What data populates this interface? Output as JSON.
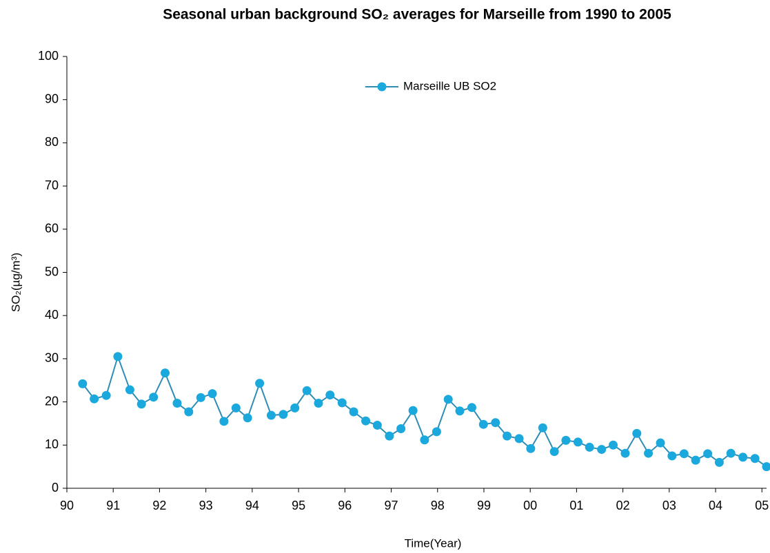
{
  "chart_data": {
    "type": "line",
    "title": "Seasonal urban background SO₂ averages for Marseille from 1990 to 2005",
    "xlabel": "Time(Year)",
    "ylabel": "SO₂(µg/m³)",
    "x": [
      1990.34,
      1990.59,
      1990.85,
      1991.1,
      1991.36,
      1991.61,
      1991.87,
      1992.12,
      1992.38,
      1992.63,
      1992.89,
      1993.14,
      1993.39,
      1993.65,
      1993.9,
      1994.16,
      1994.41,
      1994.67,
      1994.92,
      1995.18,
      1995.43,
      1995.68,
      1995.94,
      1996.19,
      1996.45,
      1996.7,
      1996.96,
      1997.21,
      1997.47,
      1997.72,
      1997.98,
      1998.23,
      1998.48,
      1998.74,
      1998.99,
      1999.25,
      1999.5,
      1999.76,
      2000.01,
      2000.27,
      2000.52,
      2000.77,
      2001.03,
      2001.28,
      2001.54,
      2001.79,
      2002.05,
      2002.3,
      2002.55,
      2002.81,
      2003.06,
      2003.32,
      2003.57,
      2003.83,
      2004.08,
      2004.33,
      2004.59,
      2004.85,
      2005.1
    ],
    "series": [
      {
        "name": "Marseille UB SO2",
        "color": "#1ba8dc",
        "line_color": "#2f8cb4",
        "values": [
          24.2,
          20.7,
          21.5,
          30.5,
          22.8,
          19.5,
          21.1,
          26.7,
          19.7,
          17.7,
          21.0,
          21.9,
          15.5,
          18.6,
          16.3,
          24.3,
          16.9,
          17.1,
          18.6,
          22.6,
          19.7,
          21.6,
          19.8,
          17.7,
          15.6,
          14.6,
          12.1,
          13.8,
          18.0,
          11.2,
          13.1,
          20.6,
          17.9,
          18.7,
          14.8,
          15.2,
          12.1,
          11.5,
          9.2,
          14.0,
          8.5,
          11.1,
          10.7,
          9.5,
          9.0,
          10.0,
          8.1,
          12.7,
          8.1,
          10.5,
          7.5,
          8.0,
          6.5,
          8.0,
          6.0,
          8.1,
          7.2,
          6.9,
          5.0
        ]
      }
    ],
    "xlim": [
      1990,
      2005.1
    ],
    "ylim": [
      0,
      100
    ],
    "xticks": [
      {
        "value": 1990,
        "label": "90"
      },
      {
        "value": 1991,
        "label": "91"
      },
      {
        "value": 1992,
        "label": "92"
      },
      {
        "value": 1993,
        "label": "93"
      },
      {
        "value": 1994,
        "label": "94"
      },
      {
        "value": 1995,
        "label": "95"
      },
      {
        "value": 1996,
        "label": "96"
      },
      {
        "value": 1997,
        "label": "97"
      },
      {
        "value": 1998,
        "label": "98"
      },
      {
        "value": 1999,
        "label": "99"
      },
      {
        "value": 2000,
        "label": "00"
      },
      {
        "value": 2001,
        "label": "01"
      },
      {
        "value": 2002,
        "label": "02"
      },
      {
        "value": 2003,
        "label": "03"
      },
      {
        "value": 2004,
        "label": "04"
      },
      {
        "value": 2005,
        "label": "05"
      }
    ],
    "yticks": [
      0,
      10,
      20,
      30,
      40,
      50,
      60,
      70,
      80,
      90,
      100
    ],
    "grid": false,
    "legend": "top"
  }
}
